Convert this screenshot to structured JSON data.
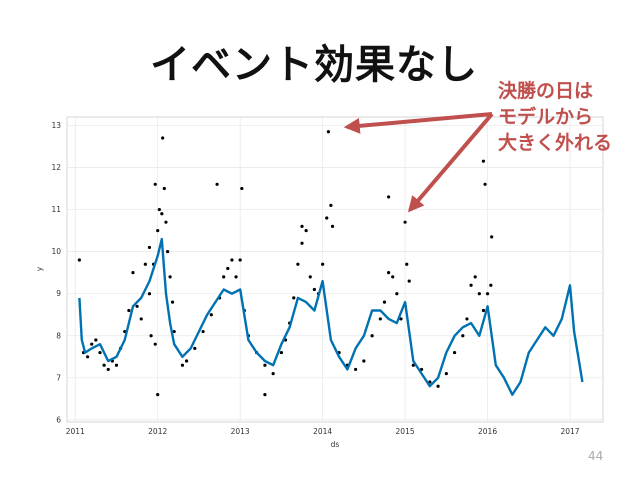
{
  "slide": {
    "title": "イベント効果なし",
    "callout_lines": [
      "決勝の日は",
      "モデルから",
      "大きく外れる"
    ],
    "page_number": "44"
  },
  "colors": {
    "forecast": "#0072b2",
    "points": "#000000",
    "callout": "#c0504d",
    "grid": "#e6e6e6"
  },
  "chart_data": {
    "type": "line",
    "xlabel": "ds",
    "ylabel": "y",
    "xlim": [
      2010.9,
      2017.4
    ],
    "ylim": [
      5.95,
      13.2
    ],
    "x_ticks": [
      "2011",
      "2012",
      "2013",
      "2014",
      "2015",
      "2016",
      "2017"
    ],
    "y_ticks": [
      "6",
      "7",
      "8",
      "9",
      "10",
      "11",
      "12",
      "13"
    ],
    "grid": true,
    "series": [
      {
        "kind": "line",
        "x": [
          2011.05,
          2011.08,
          2011.12,
          2011.2,
          2011.3,
          2011.4,
          2011.5,
          2011.6,
          2011.7,
          2011.8,
          2011.9,
          2012.0,
          2012.05,
          2012.1,
          2012.15,
          2012.2,
          2012.3,
          2012.4,
          2012.5,
          2012.6,
          2012.7,
          2012.8,
          2012.9,
          2013.0,
          2013.1,
          2013.2,
          2013.3,
          2013.4,
          2013.5,
          2013.6,
          2013.7,
          2013.8,
          2013.9,
          2014.0,
          2014.1,
          2014.2,
          2014.3,
          2014.4,
          2014.5,
          2014.6,
          2014.7,
          2014.8,
          2014.9,
          2015.0,
          2015.1,
          2015.2,
          2015.3,
          2015.4,
          2015.5,
          2015.6,
          2015.7,
          2015.8,
          2015.9,
          2016.0,
          2016.1,
          2016.2,
          2016.3,
          2016.4,
          2016.5,
          2016.6,
          2016.7,
          2016.8,
          2016.9,
          2017.0,
          2017.05,
          2017.1,
          2017.15
        ],
        "y": [
          8.9,
          7.9,
          7.6,
          7.7,
          7.8,
          7.4,
          7.5,
          7.9,
          8.7,
          8.9,
          9.3,
          9.9,
          10.3,
          9.0,
          8.3,
          7.8,
          7.5,
          7.7,
          8.1,
          8.5,
          8.8,
          9.1,
          9.0,
          9.1,
          7.9,
          7.6,
          7.4,
          7.3,
          7.8,
          8.2,
          8.9,
          8.8,
          8.6,
          9.3,
          7.9,
          7.5,
          7.2,
          7.7,
          8.0,
          8.6,
          8.6,
          8.4,
          8.3,
          8.8,
          7.4,
          7.1,
          6.8,
          7.0,
          7.6,
          8.0,
          8.2,
          8.3,
          8.0,
          8.7,
          7.3,
          7.0,
          6.6,
          6.9,
          7.6,
          7.9,
          8.2,
          8.0,
          8.4,
          9.2,
          8.1,
          7.5,
          6.9
        ]
      },
      {
        "kind": "scatter",
        "x": [
          2011.05,
          2011.1,
          2011.15,
          2011.2,
          2011.25,
          2011.3,
          2011.35,
          2011.4,
          2011.45,
          2011.5,
          2011.55,
          2011.6,
          2011.65,
          2011.7,
          2011.75,
          2011.8,
          2011.85,
          2011.9,
          2011.95,
          2012.0,
          2012.02,
          2012.05,
          2012.08,
          2012.1,
          2012.12,
          2012.15,
          2012.18,
          2012.2,
          2011.92,
          2011.97,
          2012.06,
          2011.97,
          2012.3,
          2012.35,
          2012.45,
          2012.55,
          2012.65,
          2012.75,
          2012.8,
          2012.85,
          2012.9,
          2012.95,
          2013.0,
          2013.05,
          2012.72,
          2013.02,
          2013.1,
          2013.2,
          2013.3,
          2013.4,
          2013.5,
          2013.55,
          2013.6,
          2013.65,
          2013.7,
          2013.75,
          2013.8,
          2013.85,
          2013.9,
          2013.95,
          2014.0,
          2014.05,
          2014.1,
          2014.07,
          2014.12,
          2013.75,
          2013.3,
          2014.2,
          2014.3,
          2014.4,
          2014.5,
          2014.6,
          2014.7,
          2014.75,
          2014.8,
          2014.85,
          2014.9,
          2014.95,
          2015.0,
          2015.05,
          2015.02,
          2014.8,
          2015.1,
          2015.2,
          2015.3,
          2015.4,
          2015.5,
          2015.6,
          2015.7,
          2015.75,
          2015.8,
          2015.85,
          2015.9,
          2015.95,
          2016.0,
          2016.05,
          2015.95,
          2015.97,
          2016.04,
          2012.0,
          2011.9
        ],
        "y": [
          9.8,
          7.6,
          7.5,
          7.8,
          7.9,
          7.6,
          7.3,
          7.2,
          7.4,
          7.3,
          7.7,
          8.1,
          8.6,
          9.5,
          8.7,
          8.4,
          9.7,
          10.1,
          9.7,
          10.5,
          11.0,
          10.9,
          11.5,
          10.7,
          10.0,
          9.4,
          8.8,
          8.1,
          8.0,
          7.8,
          12.7,
          11.6,
          7.3,
          7.4,
          7.7,
          8.1,
          8.5,
          8.9,
          9.4,
          9.6,
          9.8,
          9.4,
          9.8,
          8.6,
          11.6,
          11.5,
          8.0,
          7.6,
          7.3,
          7.1,
          7.6,
          7.9,
          8.3,
          8.9,
          9.7,
          10.2,
          10.5,
          9.4,
          9.1,
          9.0,
          9.7,
          10.8,
          11.1,
          12.85,
          10.6,
          10.6,
          6.6,
          7.6,
          7.3,
          7.2,
          7.4,
          8.0,
          8.4,
          8.8,
          9.5,
          9.4,
          9.0,
          8.4,
          10.7,
          9.3,
          9.7,
          11.3,
          7.3,
          7.2,
          6.9,
          6.8,
          7.1,
          7.6,
          8.0,
          8.4,
          9.2,
          9.4,
          9.0,
          8.6,
          9.0,
          10.35,
          12.15,
          11.6,
          9.2,
          6.6,
          9.0
        ]
      }
    ]
  }
}
